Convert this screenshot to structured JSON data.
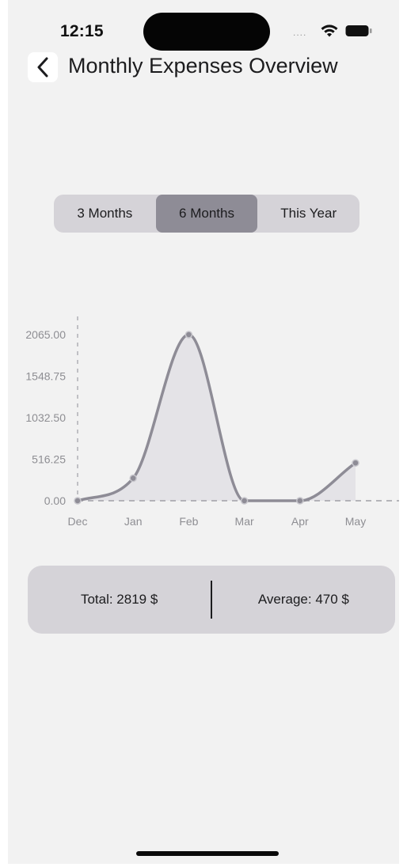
{
  "status_bar": {
    "time": "12:15",
    "signal_dots": "....",
    "icons": [
      "wifi-icon",
      "battery-icon"
    ]
  },
  "header": {
    "back_icon": "chevron-left-icon",
    "title": "Monthly Expenses Overview"
  },
  "segments": [
    {
      "label": "3 Months",
      "selected": false
    },
    {
      "label": "6 Months",
      "selected": true
    },
    {
      "label": "This Year",
      "selected": false
    }
  ],
  "colors": {
    "line": "#8e8c96",
    "fill": "#e4e3e7",
    "selected_segment": "#8e8c96",
    "control_bg": "#d5d3d8"
  },
  "chart_data": {
    "type": "area",
    "categories": [
      "Dec",
      "Jan",
      "Feb",
      "Mar",
      "Apr",
      "May"
    ],
    "values": [
      0,
      280,
      2065,
      0,
      0,
      470
    ],
    "y_ticks": [
      "2065.00",
      "1548.75",
      "1032.50",
      "516.25",
      "0.00"
    ],
    "y_tick_values": [
      2065,
      1548.75,
      1032.5,
      516.25,
      0
    ],
    "ylim": [
      0,
      2065
    ],
    "grid": false,
    "curve": "smooth"
  },
  "summary": {
    "total": "Total: 2819 $",
    "average": "Average: 470 $"
  }
}
